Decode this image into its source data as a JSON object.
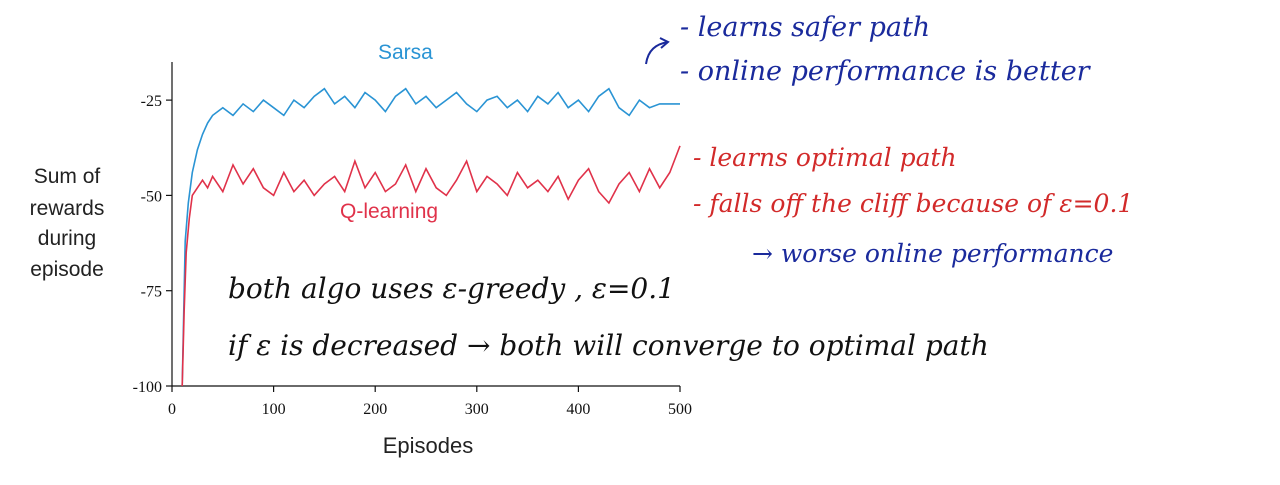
{
  "chart_data": {
    "type": "line",
    "xlabel": "Episodes",
    "ylabel": [
      "Sum of",
      "rewards",
      "during",
      "episode"
    ],
    "xlim": [
      0,
      500
    ],
    "ylim": [
      -100,
      -15
    ],
    "xticks": [
      0,
      100,
      200,
      300,
      400,
      500
    ],
    "yticks": [
      -25,
      -50,
      -75,
      -100
    ],
    "grid": false,
    "legend": "inline labels",
    "series": [
      {
        "name": "Sarsa",
        "color": "#2a94d4",
        "x": [
          10,
          13,
          16,
          20,
          25,
          30,
          35,
          40,
          50,
          60,
          70,
          80,
          90,
          100,
          110,
          120,
          130,
          140,
          150,
          160,
          170,
          180,
          190,
          200,
          210,
          220,
          230,
          240,
          250,
          260,
          270,
          280,
          290,
          300,
          310,
          320,
          330,
          340,
          350,
          360,
          370,
          380,
          390,
          400,
          410,
          420,
          430,
          440,
          450,
          460,
          470,
          480,
          490,
          500
        ],
        "values": [
          -100,
          -62,
          -52,
          -44,
          -38,
          -34,
          -31,
          -29,
          -27,
          -29,
          -26,
          -28,
          -25,
          -27,
          -29,
          -25,
          -27,
          -24,
          -22,
          -26,
          -24,
          -27,
          -23,
          -25,
          -28,
          -24,
          -22,
          -26,
          -24,
          -27,
          -25,
          -23,
          -26,
          -28,
          -25,
          -24,
          -27,
          -25,
          -28,
          -24,
          -26,
          -23,
          -27,
          -25,
          -28,
          -24,
          -22,
          -27,
          -29,
          -25,
          -27,
          -26,
          -26,
          -26
        ]
      },
      {
        "name": "Q-learning",
        "color": "#e0324a",
        "x": [
          10,
          12,
          14,
          17,
          20,
          25,
          30,
          35,
          40,
          50,
          60,
          70,
          80,
          90,
          100,
          110,
          120,
          130,
          140,
          150,
          160,
          170,
          180,
          190,
          200,
          210,
          220,
          230,
          240,
          250,
          260,
          270,
          280,
          290,
          300,
          310,
          320,
          330,
          340,
          350,
          360,
          370,
          380,
          390,
          400,
          410,
          420,
          430,
          440,
          450,
          460,
          470,
          480,
          490,
          500
        ],
        "values": [
          -100,
          -80,
          -65,
          -56,
          -50,
          -48,
          -46,
          -48,
          -45,
          -49,
          -42,
          -47,
          -43,
          -48,
          -50,
          -44,
          -49,
          -46,
          -50,
          -47,
          -45,
          -49,
          -41,
          -48,
          -44,
          -49,
          -47,
          -42,
          -49,
          -43,
          -48,
          -50,
          -46,
          -41,
          -49,
          -45,
          -47,
          -50,
          -44,
          -48,
          -46,
          -49,
          -45,
          -51,
          -46,
          -43,
          -49,
          -52,
          -47,
          -44,
          -49,
          -43,
          -48,
          -44,
          -37
        ]
      }
    ]
  },
  "annotations": {
    "sarsa_note_1": "- learns safer path",
    "sarsa_note_2": "- online performance is better",
    "q_note_1": "- learns optimal path",
    "q_note_2": "- falls off the cliff because of ε=0.1",
    "q_note_3": "→ worse online performance",
    "general_note_1": "both algo uses ε-greedy , ε=0.1",
    "general_note_2": "if ε is decreased → both will converge to optimal path"
  },
  "colors": {
    "blue_ink": "#1a2a9c",
    "red_ink": "#d22a2a",
    "black_ink": "#111111"
  }
}
